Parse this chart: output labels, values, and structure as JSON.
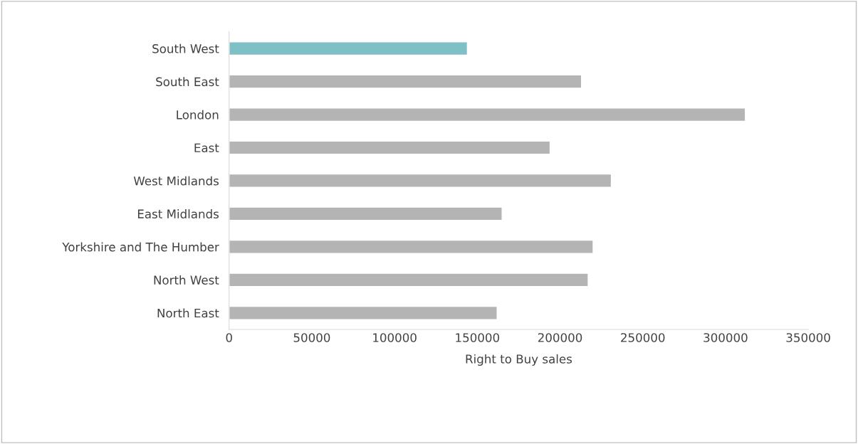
{
  "chart_data": {
    "type": "bar",
    "orientation": "horizontal",
    "xlabel": "Right to Buy sales",
    "categories": [
      "South West",
      "South East",
      "London",
      "East",
      "West Midlands",
      "East Midlands",
      "Yorkshire and The Humber",
      "North West",
      "North East"
    ],
    "values": [
      144000,
      213000,
      312000,
      194000,
      231000,
      165000,
      220000,
      217000,
      162000
    ],
    "colors": [
      "#7fbfc6",
      "#b4b4b4",
      "#b4b4b4",
      "#b4b4b4",
      "#b4b4b4",
      "#b4b4b4",
      "#b4b4b4",
      "#b4b4b4",
      "#b4b4b4"
    ],
    "xlim": [
      0,
      350000
    ],
    "xticks": [
      0,
      50000,
      100000,
      150000,
      200000,
      250000,
      300000,
      350000
    ],
    "grid": false
  }
}
